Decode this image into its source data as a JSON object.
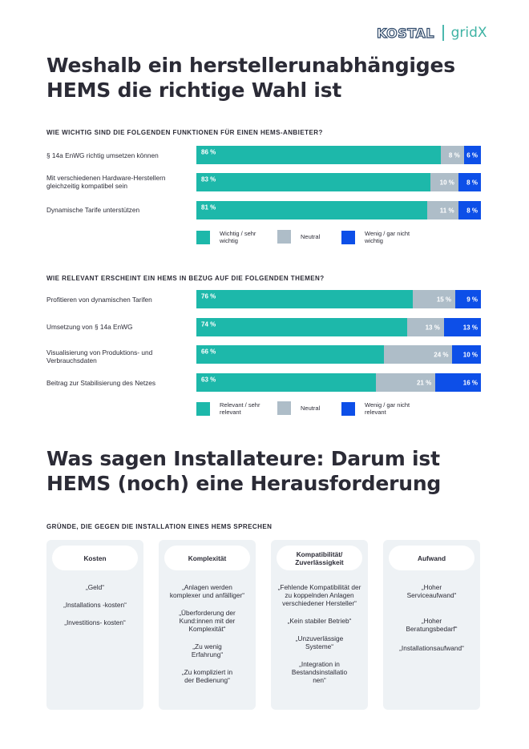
{
  "brand": {
    "kostal": "KOSTAL",
    "gridx": "gridX"
  },
  "heading1": {
    "lines": [
      "Weshalb ein herstellerunabhängiges",
      "HEMS die richtige Wahl ist"
    ]
  },
  "survey1": {
    "question": "WIE WICHTIG SIND DIE FOLGENDEN FUNKTIONEN FÜR EINEN HEMS-ANBIETER?",
    "rows": [
      {
        "label": "§ 14a EnWG richtig umsetzen können",
        "values": [
          86,
          8,
          6
        ],
        "texts": [
          "86 %",
          "8 %",
          "6 %"
        ]
      },
      {
        "label": "Mit verschiedenen Hardware-Herstellern gleichzeitig kompatibel sein",
        "values": [
          83,
          10,
          8
        ],
        "texts": [
          "83 %",
          "10 %",
          "8 %"
        ]
      },
      {
        "label": "Dynamische Tarife unterstützen",
        "values": [
          81,
          11,
          8
        ],
        "texts": [
          "81 %",
          "11 %",
          "8 %"
        ]
      }
    ],
    "legend": [
      "Wichtig / sehr wichtig",
      "Neutral",
      "Wenig / gar nicht wichtig"
    ]
  },
  "survey2": {
    "question": "WIE RELEVANT ERSCHEINT EIN HEMS IN BEZUG AUF DIE FOLGENDEN THEMEN?",
    "rows": [
      {
        "label": "Profitieren von dynamischen Tarifen",
        "values": [
          76,
          15,
          9
        ],
        "texts": [
          "76 %",
          "15 %",
          "9 %"
        ]
      },
      {
        "label": "Umsetzung von § 14a EnWG",
        "values": [
          74,
          13,
          13
        ],
        "texts": [
          "74 %",
          "13 %",
          "13 %"
        ]
      },
      {
        "label": "Visualisierung von Produktions- und Verbrauchsdaten",
        "values": [
          66,
          24,
          10
        ],
        "texts": [
          "66 %",
          "24 %",
          "10 %"
        ]
      },
      {
        "label": "Beitrag zur Stabilisierung des Netzes",
        "values": [
          63,
          21,
          16
        ],
        "texts": [
          "63 %",
          "21 %",
          "16 %"
        ]
      }
    ],
    "legend": [
      "Relevant / sehr relevant",
      "Neutral",
      "Wenig / gar nicht relevant"
    ]
  },
  "heading2": {
    "lines": [
      "Was sagen Installateure: Darum ist",
      "HEMS (noch) eine Herausforderung"
    ]
  },
  "reasons": {
    "title": "GRÜNDE, DIE GEGEN DIE INSTALLATION EINES HEMS SPRECHEN",
    "columns": [
      {
        "title": "Kosten",
        "items": [
          "„Geld“",
          "„Installations -kosten“",
          "„Investitions- kosten“"
        ]
      },
      {
        "title": "Komplexität",
        "items": [
          "„Anlagen werden komplexer und anfälliger“",
          "„Überforderung der Kund:innen mit der Komplexität“",
          "„Zu wenig Erfahrung“",
          "„Zu kompliziert in der Bedienung“"
        ]
      },
      {
        "title": "Kompatibilität/ Zuverlässigkeit",
        "items": [
          "„Fehlende Kompatibilität der zu koppelnden Anlagen verschiedener Hersteller“",
          "„Kein stabiler Betrieb“",
          "„Unzuverlässige Systeme“",
          "„Integration in Bestandsinstallatio nen“"
        ]
      },
      {
        "title": "Aufwand",
        "items": [
          "„Hoher Serviceaufwand“",
          "„Hoher Beratungsbedarf“",
          "„Installationsaufwand“"
        ]
      }
    ]
  },
  "colors": {
    "teal": "#1db8aa",
    "gray": "#aebdc8",
    "blue": "#0d4fe8",
    "panel": "#eef2f5"
  }
}
